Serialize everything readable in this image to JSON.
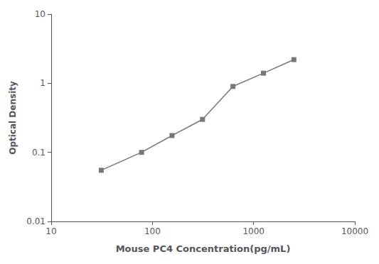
{
  "chart_data": {
    "type": "line",
    "xlabel": "Mouse PC4 Concentration(pg/mL)",
    "ylabel": "Optical Density",
    "x": [
      31.25,
      78.125,
      156.25,
      312.5,
      625,
      1250,
      2500
    ],
    "values": [
      0.055,
      0.1,
      0.175,
      0.3,
      0.9,
      1.4,
      2.2
    ],
    "xlim": [
      10,
      10000
    ],
    "ylim": [
      0.01,
      10
    ],
    "xticks": [
      10,
      100,
      1000,
      10000
    ],
    "yticks": [
      0.01,
      0.1,
      1,
      10
    ],
    "log": true,
    "grid": false,
    "color": "#777777",
    "marker": "square"
  }
}
